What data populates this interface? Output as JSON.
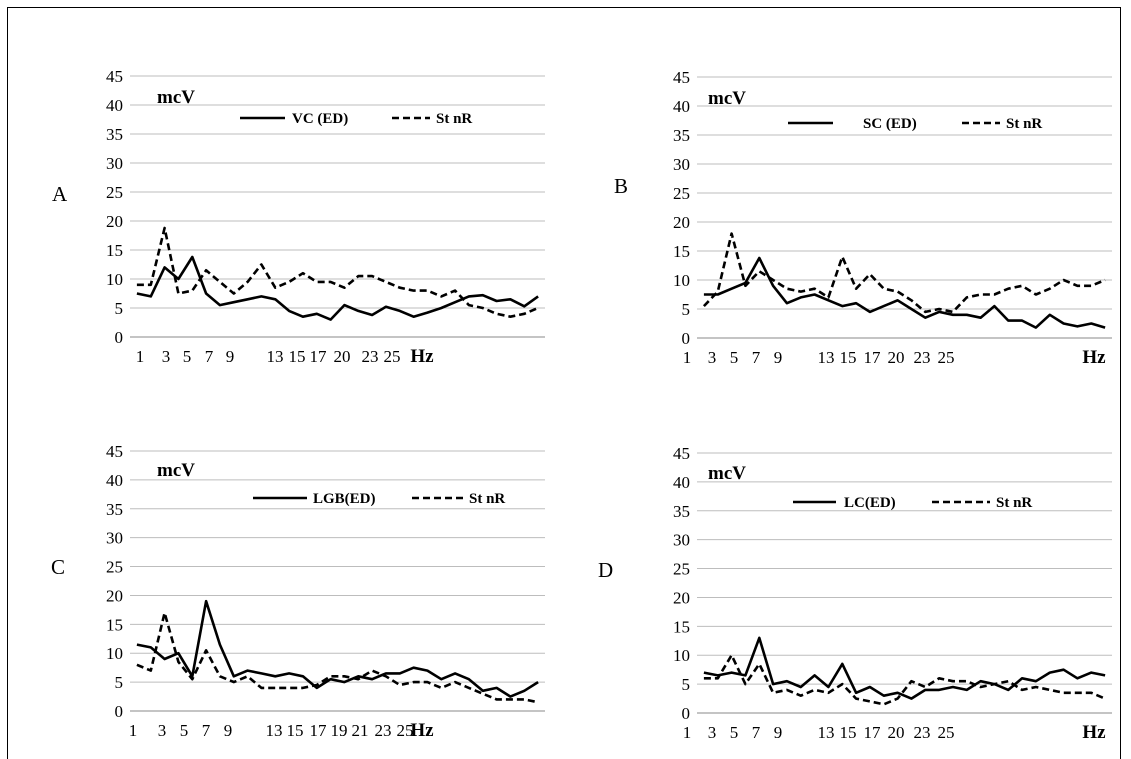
{
  "chart_data": [
    {
      "type": "line",
      "panel_label": "A",
      "unit_label": "mcV",
      "x_unit": "Hz",
      "x": [
        1,
        2,
        3,
        4,
        5,
        6,
        7,
        8,
        9,
        10,
        11,
        12,
        13,
        14,
        15,
        16,
        17,
        18,
        19,
        20,
        21,
        22,
        23,
        24,
        25,
        26,
        27,
        28,
        29,
        30
      ],
      "xtick_labels": [
        "1",
        "3",
        "5",
        "7",
        "9",
        "13",
        "15",
        "17",
        "20",
        "23",
        "25",
        "Hz"
      ],
      "ylim": [
        0,
        45
      ],
      "yticks": [
        0,
        5,
        10,
        15,
        20,
        25,
        30,
        35,
        40,
        45
      ],
      "grid": true,
      "legend_position": "top-right",
      "series": [
        {
          "name": "VC (ED)",
          "style": "solid",
          "values": [
            7.5,
            7,
            12,
            10,
            13.8,
            7.5,
            5.5,
            6,
            6.5,
            7,
            6.5,
            4.5,
            3.5,
            4,
            3,
            5.5,
            4.5,
            3.8,
            5.2,
            4.5,
            3.5,
            4.2,
            5,
            6,
            7,
            7.2,
            6.2,
            6.5,
            5.3,
            7
          ]
        },
        {
          "name": "St nR",
          "style": "dashed",
          "values": [
            9,
            9,
            18.8,
            7.5,
            8,
            11.5,
            9.5,
            7.5,
            9.5,
            12.5,
            8.5,
            9.5,
            11,
            9.5,
            9.5,
            8.5,
            10.5,
            10.5,
            9.5,
            8.5,
            8,
            8,
            7,
            8,
            5.5,
            5,
            4,
            3.5,
            4,
            5
          ]
        }
      ]
    },
    {
      "type": "line",
      "panel_label": "B",
      "unit_label": "mcV",
      "x_unit": "Hz",
      "x": [
        1,
        2,
        3,
        4,
        5,
        6,
        7,
        8,
        9,
        10,
        11,
        12,
        13,
        14,
        15,
        16,
        17,
        18,
        19,
        20,
        21,
        22,
        23,
        24,
        25,
        26,
        27,
        28,
        29,
        30
      ],
      "xtick_labels": [
        "1",
        "3",
        "5",
        "7",
        "9",
        "13",
        "15",
        "17",
        "20",
        "23",
        "25",
        "Hz"
      ],
      "ylim": [
        0,
        45
      ],
      "yticks": [
        0,
        5,
        10,
        15,
        20,
        25,
        30,
        35,
        40,
        45
      ],
      "grid": true,
      "legend_position": "top-right",
      "series": [
        {
          "name": "SC (ED)",
          "style": "solid",
          "values": [
            7.5,
            7.5,
            8.5,
            9.5,
            13.8,
            9,
            6,
            7,
            7.5,
            6.5,
            5.5,
            6,
            4.5,
            5.5,
            6.5,
            5,
            3.5,
            4.5,
            4,
            4,
            3.5,
            5.5,
            3,
            3,
            1.8,
            4,
            2.5,
            2,
            2.5,
            1.8
          ]
        },
        {
          "name": "St nR",
          "style": "dashed",
          "values": [
            5.5,
            8,
            18,
            9,
            11.5,
            10,
            8.5,
            8,
            8.5,
            7,
            14,
            8.5,
            11,
            8.5,
            8,
            6.5,
            4.5,
            5,
            4.5,
            7,
            7.5,
            7.5,
            8.5,
            9,
            7.5,
            8.5,
            10,
            9,
            9,
            10
          ]
        }
      ]
    },
    {
      "type": "line",
      "panel_label": "C",
      "unit_label": "mcV",
      "x_unit": "Hz",
      "x": [
        1,
        2,
        3,
        4,
        5,
        6,
        7,
        8,
        9,
        10,
        11,
        12,
        13,
        14,
        15,
        16,
        17,
        18,
        19,
        20,
        21,
        22,
        23,
        24,
        25,
        26,
        27,
        28,
        29,
        30
      ],
      "xtick_labels": [
        "1",
        "3",
        "5",
        "7",
        "9",
        "13",
        "15",
        "17",
        "19",
        "21",
        "23",
        "25",
        "Hz"
      ],
      "ylim": [
        0,
        45
      ],
      "yticks": [
        0,
        5,
        10,
        15,
        20,
        25,
        30,
        35,
        40,
        45
      ],
      "grid": true,
      "legend_position": "top-right",
      "series": [
        {
          "name": "LGB(ED)",
          "style": "solid",
          "values": [
            11.5,
            11,
            9,
            10,
            6,
            19,
            11.5,
            6,
            7,
            6.5,
            6,
            6.5,
            6,
            4,
            5.5,
            5,
            6,
            5.5,
            6.5,
            6.5,
            7.5,
            7,
            5.5,
            6.5,
            5.5,
            3.5,
            4,
            2.5,
            3.5,
            5
          ]
        },
        {
          "name": "St nR",
          "style": "dashed",
          "values": [
            8,
            7,
            17,
            8.5,
            5.5,
            10.5,
            6,
            5,
            6,
            4,
            4,
            4,
            4,
            4.5,
            6,
            6,
            5.5,
            7,
            6,
            4.5,
            5,
            5,
            4,
            5,
            4,
            3,
            2,
            2,
            2,
            1.5
          ]
        }
      ]
    },
    {
      "type": "line",
      "panel_label": "D",
      "unit_label": "mcV",
      "x_unit": "Hz",
      "x": [
        1,
        2,
        3,
        4,
        5,
        6,
        7,
        8,
        9,
        10,
        11,
        12,
        13,
        14,
        15,
        16,
        17,
        18,
        19,
        20,
        21,
        22,
        23,
        24,
        25,
        26,
        27,
        28,
        29,
        30
      ],
      "xtick_labels": [
        "1",
        "3",
        "5",
        "7",
        "9",
        "13",
        "15",
        "17",
        "20",
        "23",
        "25",
        "Hz"
      ],
      "ylim": [
        0,
        45
      ],
      "yticks": [
        0,
        5,
        10,
        15,
        20,
        25,
        30,
        35,
        40,
        45
      ],
      "grid": true,
      "legend_position": "top-right",
      "series": [
        {
          "name": "LC(ED)",
          "style": "solid",
          "values": [
            7,
            6.5,
            7,
            6.5,
            13,
            5,
            5.5,
            4.5,
            6.5,
            4.5,
            8.5,
            3.5,
            4.5,
            3,
            3.5,
            2.5,
            4,
            4,
            4.5,
            4,
            5.5,
            5,
            4,
            6,
            5.5,
            7,
            7.5,
            6,
            7,
            6.5
          ]
        },
        {
          "name": "St nR",
          "style": "dashed",
          "values": [
            6,
            6,
            10,
            5,
            8.5,
            3.5,
            4,
            3,
            4,
            3.5,
            5,
            2.5,
            2,
            1.5,
            2.5,
            5.5,
            4.5,
            6,
            5.5,
            5.5,
            4.5,
            5,
            5.5,
            4,
            4.5,
            4,
            3.5,
            3.5,
            3.5,
            2.5
          ]
        }
      ]
    }
  ]
}
